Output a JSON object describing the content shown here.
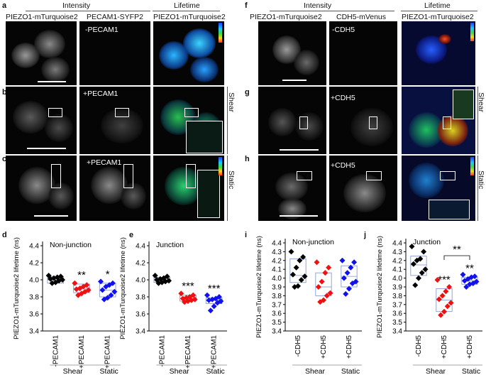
{
  "panels": {
    "a": "a",
    "b": "b",
    "c": "c",
    "d": "d",
    "e": "e",
    "f": "f",
    "g": "g",
    "h": "h",
    "i": "i",
    "j": "j"
  },
  "left_top": {
    "intensity_header": "Intensity",
    "lifetime_header": "Lifetime",
    "col1": "PIEZO1-mTurquoise2",
    "col2": "PECAM1-SYFP2",
    "col3": "PIEZO1-mTurquoise2",
    "row_a_label": "-PECAM1",
    "row_b_label": "+PECAM1",
    "row_c_label": "+PECAM1",
    "shear": "Shear",
    "static": "Static"
  },
  "right_top": {
    "intensity_header": "Intensity",
    "lifetime_header": "Lifetime",
    "col1": "PIEZO1-mTurquoise2",
    "col2": "CDH5-mVenus",
    "col3": "PIEZO1-mTurquoise2",
    "row_f_label": "-CDH5",
    "row_g_label": "+CDH5",
    "row_h_label": "+CDH5",
    "shear": "Shear",
    "static": "Static"
  },
  "chart_data": [
    {
      "panel": "d",
      "type": "scatter",
      "title": "Non-junction",
      "ylabel": "PIEZO1-mTurquoise2 lifetime (ns)",
      "ylim": [
        3.4,
        4.4
      ],
      "yticks": [
        "3.4",
        "3.6",
        "3.8",
        "4.0",
        "4.2",
        "4.4"
      ],
      "categories": [
        "-PECAM1",
        "+PECAM1",
        "+PECAM1"
      ],
      "group_labels": [
        "Shear",
        "Static"
      ],
      "colors": [
        "#000000",
        "#ee1111",
        "#1111ee"
      ],
      "markers": [
        "diamond",
        "diamond",
        "diamond"
      ],
      "significance": [
        "",
        "**",
        "*"
      ],
      "series": [
        {
          "values": [
            4.05,
            4.04,
            4.03,
            4.02,
            4.01,
            4.0,
            3.99,
            3.97,
            3.96
          ],
          "box": [
            3.96,
            4.0,
            4.04
          ]
        },
        {
          "values": [
            3.96,
            3.94,
            3.92,
            3.9,
            3.89,
            3.88,
            3.86,
            3.84,
            3.82
          ],
          "box": [
            3.85,
            3.9,
            3.95
          ]
        },
        {
          "values": [
            3.98,
            3.96,
            3.94,
            3.92,
            3.88,
            3.86,
            3.82,
            3.79,
            3.77
          ],
          "box": [
            3.8,
            3.88,
            3.96
          ]
        }
      ]
    },
    {
      "panel": "e",
      "type": "scatter",
      "title": "Junction",
      "ylabel": "PIEZO1-mTurquoise2 lifetime (ns)",
      "ylim": [
        3.4,
        4.4
      ],
      "yticks": [
        "3.4",
        "3.6",
        "3.8",
        "4.0",
        "4.2",
        "4.4"
      ],
      "categories": [
        "-PECAM1",
        "+PECAM1",
        "+PECAM1"
      ],
      "group_labels": [
        "Shear",
        "Static"
      ],
      "colors": [
        "#000000",
        "#ee1111",
        "#1111ee"
      ],
      "markers": [
        "diamond",
        "diamond",
        "diamond"
      ],
      "significance": [
        "",
        "***",
        "***"
      ],
      "series": [
        {
          "values": [
            4.05,
            4.04,
            4.02,
            4.01,
            4.0,
            3.99,
            3.98,
            3.97,
            3.96
          ],
          "box": [
            3.97,
            4.0,
            4.03
          ]
        },
        {
          "values": [
            3.84,
            3.82,
            3.8,
            3.79,
            3.78,
            3.77,
            3.76,
            3.75,
            3.74
          ],
          "box": [
            3.75,
            3.78,
            3.82
          ]
        },
        {
          "values": [
            3.82,
            3.8,
            3.78,
            3.77,
            3.76,
            3.75,
            3.73,
            3.69,
            3.64
          ],
          "box": [
            3.72,
            3.76,
            3.79
          ]
        }
      ]
    },
    {
      "panel": "i",
      "type": "scatter",
      "title": "Non-junction",
      "ylabel": "PIEZO1-mTurquoise2 lifetime (ns)",
      "ylim": [
        3.4,
        4.4
      ],
      "yticks": [
        "3.4",
        "3.5",
        "3.6",
        "3.7",
        "3.8",
        "3.9",
        "4.0",
        "4.1",
        "4.2",
        "4.3",
        "4.4"
      ],
      "categories": [
        "-CDH5",
        "+CDH5",
        "+CDH5"
      ],
      "group_labels": [
        "Shear",
        "Static"
      ],
      "colors": [
        "#000000",
        "#ee1111",
        "#1111ee"
      ],
      "markers": [
        "diamond",
        "diamond",
        "diamond"
      ],
      "significance": [
        "",
        "",
        ""
      ],
      "series": [
        {
          "values": [
            4.3,
            4.24,
            4.2,
            4.12,
            4.04,
            4.02,
            3.98,
            3.91,
            3.9
          ],
          "box": [
            3.95,
            4.03,
            4.22
          ]
        },
        {
          "values": [
            4.18,
            4.12,
            4.06,
            3.96,
            3.9,
            3.83,
            3.8,
            3.75,
            3.73
          ],
          "box": [
            3.8,
            3.9,
            4.06
          ]
        },
        {
          "values": [
            4.2,
            4.18,
            4.12,
            4.06,
            4.0,
            3.96,
            3.94,
            3.88,
            3.82
          ],
          "box": [
            3.9,
            4.02,
            4.14
          ]
        }
      ]
    },
    {
      "panel": "j",
      "type": "scatter",
      "title": "Junction",
      "ylabel": "PIEZO1-mTurquoise2 lifetime (ns)",
      "ylim": [
        3.4,
        4.4
      ],
      "yticks": [
        "3.4",
        "3.5",
        "3.6",
        "3.7",
        "3.8",
        "3.9",
        "4.0",
        "4.1",
        "4.2",
        "4.3",
        "4.4"
      ],
      "categories": [
        "-CDH5",
        "+CDH5",
        "+CDH5"
      ],
      "group_labels": [
        "Shear",
        "Static"
      ],
      "colors": [
        "#000000",
        "#ee1111",
        "#1111ee"
      ],
      "markers": [
        "diamond",
        "diamond",
        "diamond"
      ],
      "significance": [
        "",
        "***",
        "**"
      ],
      "bracket_label": "**",
      "series": [
        {
          "values": [
            4.36,
            4.3,
            4.22,
            4.2,
            4.16,
            4.1,
            4.06,
            4.0,
            3.92
          ],
          "box": [
            4.03,
            4.15,
            4.25
          ]
        },
        {
          "values": [
            3.98,
            3.9,
            3.85,
            3.8,
            3.76,
            3.72,
            3.68,
            3.62,
            3.58
          ],
          "box": [
            3.62,
            3.75,
            3.88
          ]
        },
        {
          "values": [
            4.04,
            4.02,
            4.01,
            3.99,
            3.97,
            3.96,
            3.94,
            3.93,
            3.9
          ],
          "box": [
            3.93,
            3.97,
            4.01
          ]
        }
      ]
    }
  ]
}
